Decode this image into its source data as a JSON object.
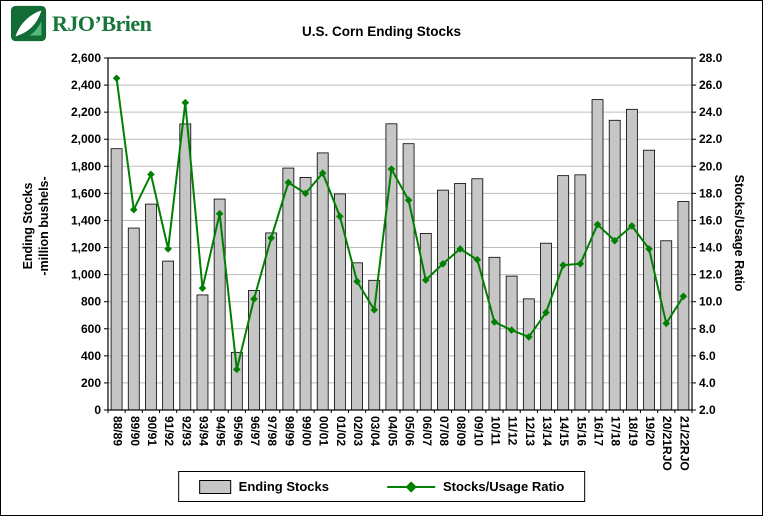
{
  "logo": {
    "text": "RJO’Brien"
  },
  "title": "U.S. Corn Ending Stocks",
  "chart_data": {
    "type": "bar",
    "title": "U.S. Corn Ending Stocks",
    "categories": [
      "88/89",
      "89/90",
      "90/91",
      "91/92",
      "92/93",
      "93/94",
      "94/95",
      "95/96",
      "96/97",
      "97/98",
      "98/99",
      "99/00",
      "00/01",
      "01/02",
      "02/03",
      "03/04",
      "04/05",
      "05/06",
      "06/07",
      "07/08",
      "08/09",
      "09/10",
      "10/11",
      "11/12",
      "12/13",
      "13/14",
      "14/15",
      "15/16",
      "16/17",
      "17/18",
      "18/19",
      "19/20",
      "20/21RJO",
      "21/22RJO"
    ],
    "series": [
      {
        "name": "Ending Stocks",
        "type": "bar",
        "axis": "left",
        "values": [
          1930,
          1344,
          1521,
          1100,
          2113,
          850,
          1558,
          426,
          883,
          1308,
          1787,
          1718,
          1899,
          1596,
          1087,
          958,
          2114,
          1967,
          1304,
          1624,
          1673,
          1708,
          1128,
          989,
          821,
          1232,
          1731,
          1737,
          2293,
          2140,
          2221,
          1919,
          1250,
          1540
        ]
      },
      {
        "name": "Stocks/Usage Ratio",
        "type": "line",
        "axis": "right",
        "values": [
          26.5,
          16.8,
          19.4,
          13.9,
          24.7,
          11.0,
          16.5,
          5.0,
          10.2,
          14.7,
          18.8,
          18.0,
          19.5,
          16.3,
          11.5,
          9.4,
          19.8,
          17.5,
          11.6,
          12.8,
          13.9,
          13.1,
          8.5,
          7.9,
          7.4,
          9.2,
          12.7,
          12.8,
          15.7,
          14.5,
          15.6,
          13.9,
          8.4,
          10.4
        ]
      }
    ],
    "left_axis": {
      "title_line1": "Ending Stocks",
      "title_line2": "-million bushels-",
      "min": 0,
      "max": 2600,
      "step": 200
    },
    "right_axis": {
      "title": "Stocks/Usage Ratio",
      "min": 2,
      "max": 28,
      "step": 2
    },
    "legend_position": "bottom",
    "grid": "horizontal",
    "colors": {
      "bar_fill": "#c6c6c6",
      "bar_stroke": "#000000",
      "line": "#008000"
    }
  }
}
